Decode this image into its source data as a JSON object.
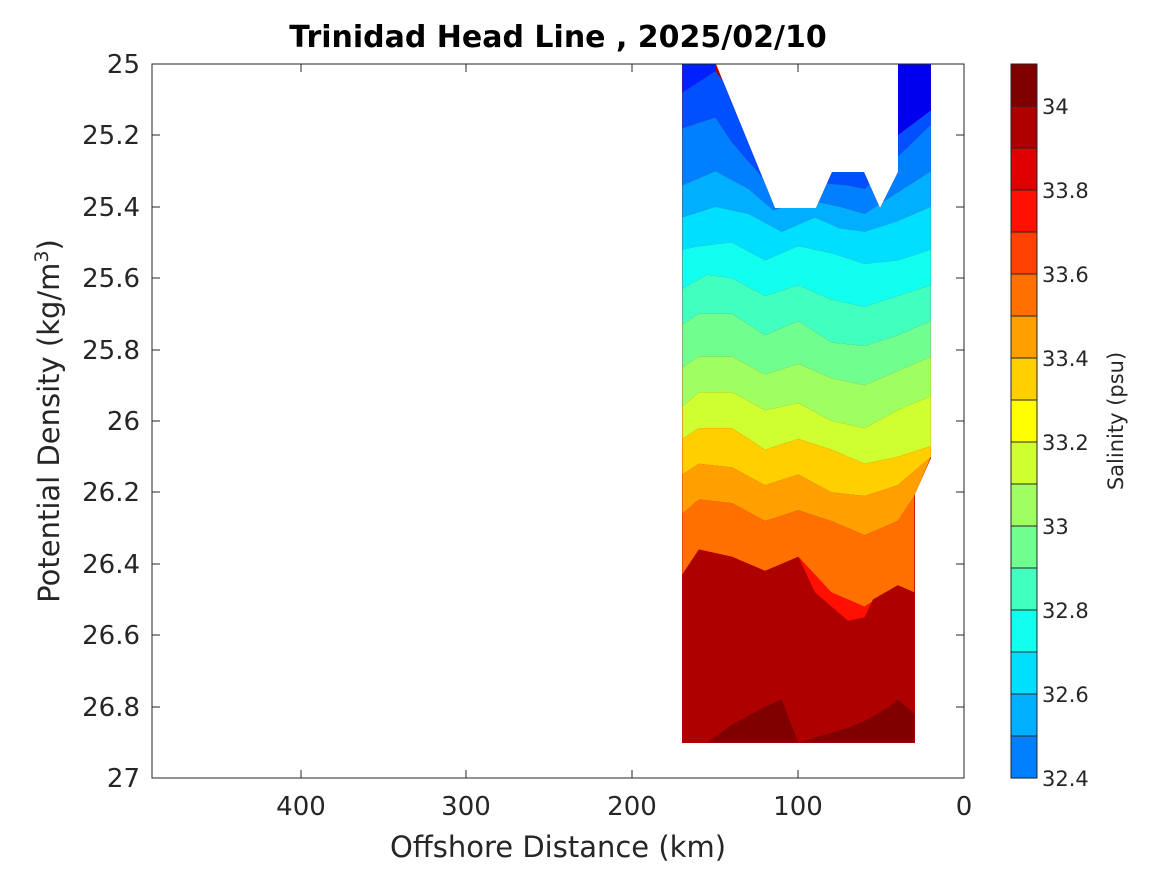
{
  "chart_data": {
    "type": "filled-contour",
    "title": "Trinidad Head Line , 2025/02/10",
    "xlabel": "Offshore Distance (km)",
    "ylabel_main": "Potential Density (kg/m",
    "ylabel_sup": "3",
    "ylabel_end": ")",
    "colorbar_label": "Salinity (psu)",
    "xlim": [
      490,
      0
    ],
    "ylim": [
      27,
      25
    ],
    "x_ticks": [
      "400",
      "300",
      "200",
      "100",
      "0"
    ],
    "y_ticks": [
      "25",
      "25.2",
      "25.4",
      "25.6",
      "25.8",
      "26",
      "26.2",
      "26.4",
      "26.6",
      "26.8",
      "27"
    ],
    "colorbar_range": [
      32.4,
      34.1
    ],
    "colorbar_ticks": [
      "32.4",
      "32.6",
      "32.8",
      "33",
      "33.2",
      "33.4",
      "33.6",
      "33.8",
      "34"
    ],
    "levels": [
      32.4,
      32.5,
      32.6,
      32.7,
      32.8,
      32.9,
      33.0,
      33.1,
      33.2,
      33.3,
      33.4,
      33.5,
      33.6,
      33.7,
      33.8,
      33.9,
      34.0,
      34.1
    ],
    "level_colors": [
      "#00008f",
      "#0000bf",
      "#0000ef",
      "#0020ff",
      "#0050ff",
      "#0080ff",
      "#00afff",
      "#00dfff",
      "#10ffef",
      "#40ffbf",
      "#70ff8f",
      "#9fff60",
      "#cfff30",
      "#ffff00",
      "#ffcf00",
      "#ff9f00",
      "#ff7000",
      "#ff4000",
      "#ff1000",
      "#df0000",
      "#af0000",
      "#800000"
    ],
    "data_x_extent_km": [
      170,
      20
    ],
    "data_y_extent": [
      25.0,
      26.9
    ],
    "bands": [
      {
        "color": "#0000ef",
        "x": [
          40,
          20,
          20,
          40
        ],
        "y": [
          25.0,
          25.0,
          25.13,
          25.2
        ]
      },
      {
        "color": "#0020ff",
        "x": [
          170,
          150,
          150,
          170
        ],
        "y": [
          25.0,
          25.0,
          25.02,
          25.08
        ]
      },
      {
        "color": "#0050ff",
        "x": [
          170,
          150,
          140,
          130,
          115,
          95,
          70,
          60,
          40,
          20,
          20,
          40,
          60,
          70,
          95,
          115,
          125,
          140,
          150,
          170
        ],
        "y": [
          25.08,
          25.02,
          25.08,
          25.15,
          25.25,
          25.27,
          25.3,
          25.28,
          25.2,
          25.13,
          25.17,
          25.26,
          25.35,
          25.34,
          25.33,
          25.36,
          25.3,
          25.22,
          25.15,
          25.18
        ]
      },
      {
        "color": "#0080ff",
        "x": [
          170,
          150,
          140,
          125,
          115,
          95,
          70,
          60,
          40,
          20,
          20,
          40,
          60,
          75,
          95,
          115,
          130,
          150,
          170
        ],
        "y": [
          25.18,
          25.15,
          25.22,
          25.3,
          25.36,
          25.33,
          25.34,
          25.35,
          25.26,
          25.17,
          25.3,
          25.36,
          25.42,
          25.4,
          25.38,
          25.41,
          25.35,
          25.3,
          25.34
        ]
      },
      {
        "color": "#00afff",
        "x": [
          170,
          150,
          130,
          115,
          95,
          75,
          60,
          40,
          20,
          20,
          40,
          60,
          75,
          90,
          110,
          130,
          150,
          170
        ],
        "y": [
          25.34,
          25.3,
          25.35,
          25.41,
          25.38,
          25.4,
          25.42,
          25.36,
          25.3,
          25.4,
          25.44,
          25.47,
          25.46,
          25.43,
          25.47,
          25.42,
          25.4,
          25.43
        ]
      },
      {
        "color": "#00dfff",
        "x": [
          170,
          150,
          130,
          110,
          90,
          75,
          60,
          40,
          20,
          20,
          40,
          60,
          80,
          100,
          120,
          140,
          160,
          170
        ],
        "y": [
          25.43,
          25.4,
          25.42,
          25.47,
          25.43,
          25.46,
          25.47,
          25.44,
          25.4,
          25.52,
          25.55,
          25.56,
          25.53,
          25.51,
          25.55,
          25.5,
          25.51,
          25.52
        ]
      },
      {
        "color": "#10ffef",
        "x": [
          170,
          160,
          140,
          120,
          100,
          80,
          60,
          40,
          20,
          20,
          40,
          60,
          80,
          100,
          120,
          140,
          155,
          170
        ],
        "y": [
          25.52,
          25.51,
          25.5,
          25.55,
          25.51,
          25.53,
          25.56,
          25.55,
          25.52,
          25.62,
          25.65,
          25.68,
          25.66,
          25.62,
          25.65,
          25.6,
          25.59,
          25.63
        ]
      },
      {
        "color": "#40ffbf",
        "x": [
          170,
          155,
          140,
          120,
          100,
          80,
          60,
          40,
          20,
          20,
          40,
          60,
          80,
          100,
          120,
          140,
          160,
          170
        ],
        "y": [
          25.63,
          25.59,
          25.6,
          25.65,
          25.62,
          25.66,
          25.68,
          25.65,
          25.62,
          25.72,
          25.76,
          25.79,
          25.78,
          25.72,
          25.76,
          25.7,
          25.7,
          25.73
        ]
      },
      {
        "color": "#70ff8f",
        "x": [
          170,
          160,
          140,
          120,
          100,
          80,
          60,
          40,
          20,
          20,
          40,
          60,
          80,
          100,
          120,
          140,
          160,
          170
        ],
        "y": [
          25.73,
          25.7,
          25.7,
          25.76,
          25.72,
          25.78,
          25.79,
          25.76,
          25.72,
          25.82,
          25.86,
          25.9,
          25.88,
          25.84,
          25.87,
          25.82,
          25.82,
          25.85
        ]
      },
      {
        "color": "#9fff60",
        "x": [
          170,
          160,
          140,
          120,
          100,
          80,
          60,
          40,
          20,
          20,
          40,
          60,
          80,
          100,
          120,
          140,
          160,
          170
        ],
        "y": [
          25.85,
          25.82,
          25.82,
          25.87,
          25.84,
          25.88,
          25.9,
          25.86,
          25.82,
          25.93,
          25.97,
          26.02,
          26.0,
          25.95,
          25.97,
          25.92,
          25.92,
          25.96
        ]
      },
      {
        "color": "#cfff30",
        "x": [
          170,
          160,
          140,
          120,
          100,
          80,
          60,
          40,
          20,
          20,
          40,
          60,
          80,
          100,
          120,
          140,
          160,
          170
        ],
        "y": [
          25.96,
          25.92,
          25.92,
          25.97,
          25.95,
          26.0,
          26.02,
          25.97,
          25.93,
          26.07,
          26.1,
          26.12,
          26.08,
          26.05,
          26.08,
          26.02,
          26.02,
          26.05
        ]
      },
      {
        "color": "#ffcf00",
        "x": [
          170,
          160,
          140,
          120,
          100,
          80,
          60,
          40,
          20,
          20,
          40,
          60,
          80,
          100,
          120,
          140,
          160,
          170
        ],
        "y": [
          26.05,
          26.02,
          26.02,
          26.08,
          26.05,
          26.08,
          26.12,
          26.1,
          26.07,
          26.1,
          26.18,
          26.21,
          26.2,
          26.15,
          26.18,
          26.13,
          26.12,
          26.15
        ]
      },
      {
        "color": "#ff9f00",
        "x": [
          170,
          160,
          140,
          120,
          100,
          80,
          60,
          40,
          30,
          20,
          30,
          40,
          60,
          80,
          100,
          120,
          140,
          160,
          170
        ],
        "y": [
          26.15,
          26.12,
          26.13,
          26.18,
          26.15,
          26.2,
          26.21,
          26.18,
          26.14,
          26.1,
          26.21,
          26.28,
          26.32,
          26.28,
          26.25,
          26.28,
          26.23,
          26.22,
          26.26
        ]
      },
      {
        "color": "#ff7000",
        "x": [
          170,
          160,
          140,
          120,
          100,
          80,
          60,
          40,
          30,
          30,
          40,
          60,
          80,
          100,
          120,
          140,
          160,
          170
        ],
        "y": [
          26.26,
          26.22,
          26.23,
          26.28,
          26.25,
          26.28,
          26.32,
          26.28,
          26.21,
          26.48,
          26.46,
          26.52,
          26.48,
          26.38,
          26.42,
          26.38,
          26.36,
          26.43
        ]
      },
      {
        "color": "#ff1000",
        "x": [
          170,
          160,
          140,
          120,
          100,
          80,
          60,
          40,
          30,
          30,
          40,
          55,
          60,
          70,
          80,
          90,
          100,
          120,
          140,
          160,
          170
        ],
        "y": [
          26.43,
          26.36,
          26.38,
          26.42,
          26.38,
          26.48,
          26.52,
          26.46,
          26.48,
          26.9,
          26.8,
          26.85,
          26.55,
          26.56,
          26.52,
          26.48,
          26.38,
          26.42,
          26.38,
          26.36,
          26.43
        ]
      },
      {
        "color": "#af0000",
        "x": [
          170,
          160,
          140,
          120,
          100,
          90,
          80,
          70,
          60,
          55,
          40,
          30,
          30,
          170
        ],
        "y": [
          26.43,
          26.36,
          26.38,
          26.42,
          26.38,
          26.48,
          26.52,
          26.56,
          26.55,
          26.5,
          26.46,
          26.48,
          26.9,
          26.9
        ]
      },
      {
        "color": "#800000",
        "x": [
          155,
          140,
          120,
          110,
          100,
          85,
          70,
          60,
          45,
          40,
          30,
          30,
          155
        ],
        "y": [
          26.9,
          26.85,
          26.8,
          26.78,
          26.9,
          26.88,
          26.86,
          26.84,
          26.8,
          26.78,
          26.82,
          26.9,
          26.9
        ]
      }
    ]
  }
}
